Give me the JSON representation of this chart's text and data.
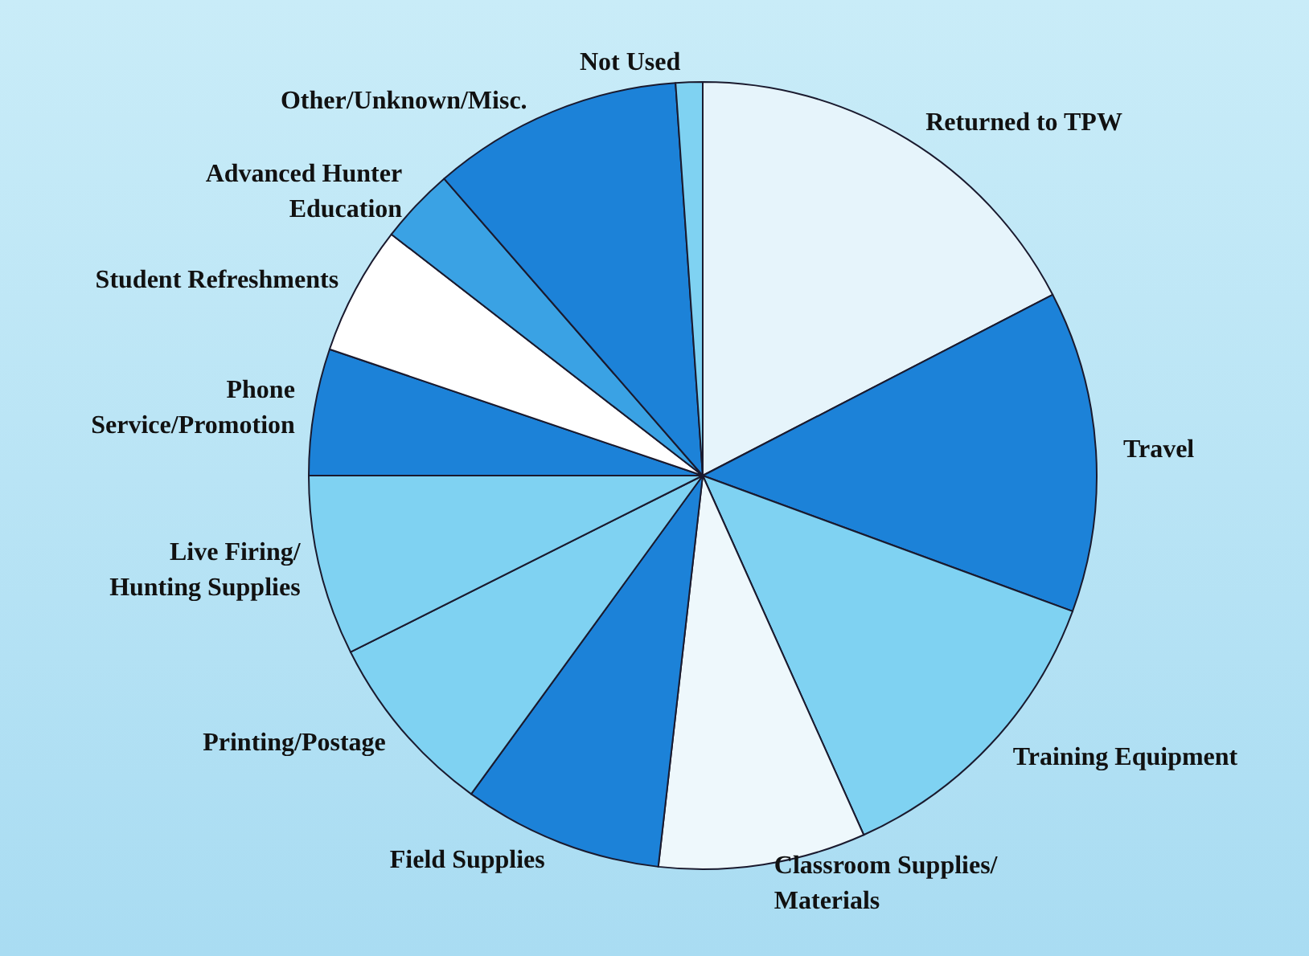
{
  "chart_data": {
    "type": "pie",
    "categories": [
      "Returned to TPW",
      "Travel",
      "Training Equipment",
      "Classroom Supplies/\nMaterials",
      "Field Supplies",
      "Printing/Postage",
      "Live Firing/\nHunting Supplies",
      "Phone\nService/Promotion",
      "Student Refreshments",
      "Advanced Hunter\nEducation",
      "Other/Unknown/Misc.",
      "Not Used"
    ],
    "values": [
      17.4,
      13.2,
      12.7,
      8.5,
      8.2,
      7.6,
      7.4,
      5.2,
      5.3,
      3.1,
      10.3,
      1.1
    ],
    "colors": [
      "#e6f4fb",
      "#1c82d8",
      "#7fd2f2",
      "#eef8fc",
      "#1c82d8",
      "#7fd2f2",
      "#7fd2f2",
      "#1c82d8",
      "#ffffff",
      "#3aa2e4",
      "#1c82d8",
      "#7fd2f2"
    ],
    "legend": false
  }
}
